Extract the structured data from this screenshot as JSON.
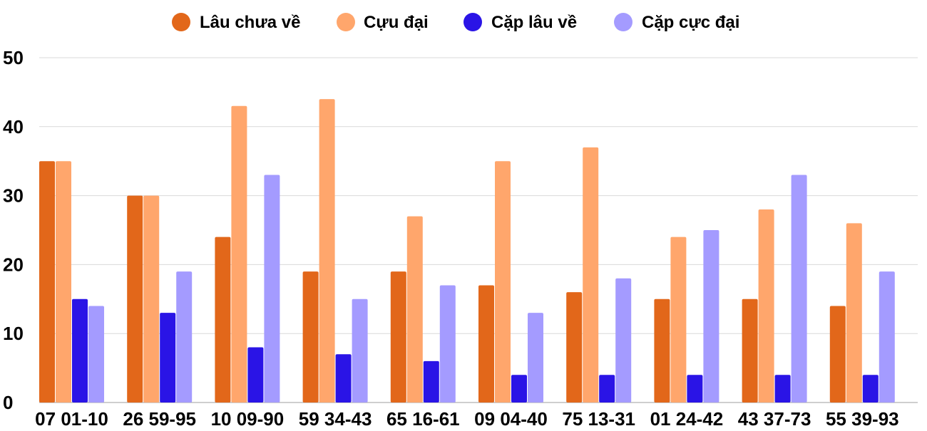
{
  "chart_data": {
    "type": "bar",
    "legend_position": "top",
    "grid": true,
    "ylim": [
      0,
      50
    ],
    "yticks": [
      0,
      10,
      20,
      30,
      40,
      50
    ],
    "categories": [
      "07 01-10",
      "26 59-95",
      "10 09-90",
      "59 34-43",
      "65 16-61",
      "09 04-40",
      "75 13-31",
      "01 24-42",
      "43 37-73",
      "55 39-93"
    ],
    "series": [
      {
        "name": "Lâu chưa về",
        "color": "#E2671A",
        "values": [
          35,
          30,
          24,
          19,
          19,
          17,
          16,
          15,
          15,
          14
        ]
      },
      {
        "name": "Cựu đại",
        "color": "#FFA66C",
        "values": [
          35,
          30,
          43,
          44,
          27,
          35,
          37,
          24,
          28,
          26
        ]
      },
      {
        "name": "Cặp lâu về",
        "color": "#2A14E6",
        "values": [
          15,
          13,
          8,
          7,
          6,
          4,
          4,
          4,
          4,
          4
        ]
      },
      {
        "name": "Cặp cực đại",
        "color": "#A49BFF",
        "values": [
          14,
          19,
          33,
          15,
          17,
          13,
          18,
          25,
          33,
          19
        ]
      }
    ]
  }
}
